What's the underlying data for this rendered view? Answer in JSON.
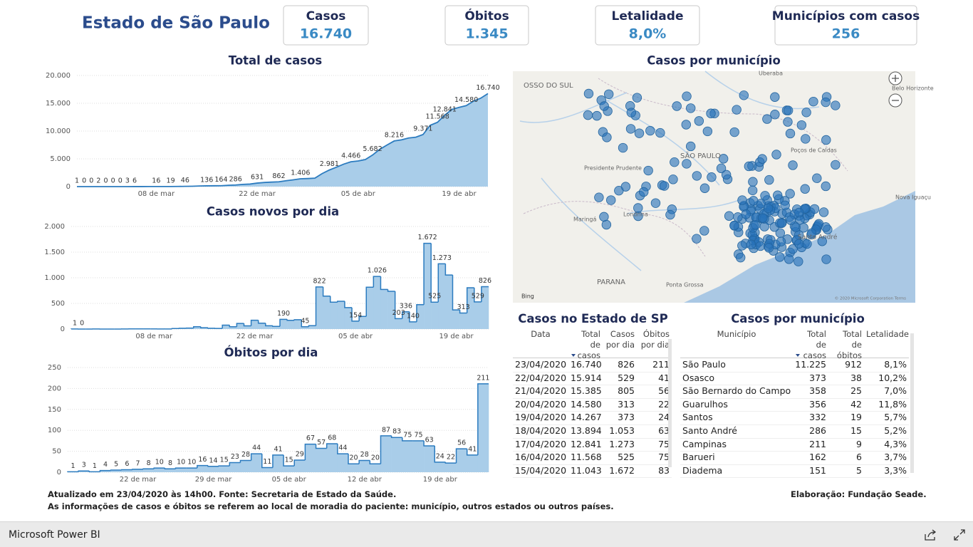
{
  "header": {
    "title": "Estado de São Paulo"
  },
  "kpis": [
    {
      "label": "Casos",
      "value": "16.740"
    },
    {
      "label": "Óbitos",
      "value": "1.345"
    },
    {
      "label": "Letalidade",
      "value": "8,0%"
    },
    {
      "label": "Municípios com casos",
      "value": "256"
    }
  ],
  "chart_data": [
    {
      "type": "area",
      "title": "Total de casos",
      "color": "#2b7bbf",
      "fill": "#a9cde9",
      "grid": true,
      "categories": [
        null,
        null,
        null,
        null,
        null,
        null,
        null,
        null,
        null,
        null,
        null,
        "08 de mar",
        null,
        null,
        null,
        null,
        null,
        null,
        null,
        null,
        null,
        null,
        null,
        null,
        null,
        "22 de mar",
        null,
        null,
        null,
        null,
        null,
        null,
        null,
        null,
        null,
        null,
        null,
        null,
        null,
        "05 de abr",
        null,
        null,
        null,
        null,
        null,
        null,
        null,
        null,
        null,
        null,
        null,
        null,
        null,
        "19 de abr",
        null,
        null,
        null,
        null
      ],
      "values": [
        1,
        0,
        0,
        2,
        0,
        0,
        0,
        3,
        6,
        10,
        13,
        16,
        17,
        19,
        30,
        46,
        65,
        110,
        136,
        152,
        164,
        240,
        286,
        396,
        459,
        631,
        745,
        810,
        862,
        1052,
        1223,
        1406,
        1451,
        1517,
        2339,
        2981,
        3506,
        4048,
        4466,
        4620,
        4866,
        5682,
        6708,
        7480,
        8216,
        8419,
        8755,
        8895,
        9371,
        11043,
        11568,
        12841,
        13894,
        14267,
        14580,
        15385,
        15914,
        16740
      ],
      "value_labels": [
        "1",
        "0",
        "0",
        "2",
        "0",
        "0",
        "0",
        "3",
        "6",
        null,
        null,
        "16",
        null,
        "19",
        null,
        "46",
        null,
        null,
        "136",
        null,
        "164",
        null,
        "286",
        null,
        null,
        "631",
        null,
        null,
        "862",
        null,
        null,
        "1.406",
        null,
        null,
        null,
        "2.981",
        null,
        null,
        "4.466",
        null,
        null,
        "5.682",
        null,
        null,
        "8.216",
        null,
        null,
        null,
        "9.371",
        null,
        "11.568",
        "12.841",
        null,
        null,
        "14.580",
        null,
        null,
        "16.740"
      ],
      "ylim": [
        0,
        20000
      ],
      "yticks": [
        0,
        {
          "value": 5000,
          "label": "5.000"
        },
        {
          "value": 10000,
          "label": "10.000"
        },
        {
          "value": 15000,
          "label": "15.000"
        },
        {
          "value": 20000,
          "label": "20.000"
        }
      ]
    },
    {
      "type": "step",
      "title": "Casos novos por dia",
      "color": "#2b7bbf",
      "fill": "#a9cde9",
      "grid": true,
      "categories": [
        null,
        null,
        null,
        null,
        null,
        null,
        null,
        null,
        null,
        null,
        null,
        "08 de mar",
        null,
        null,
        null,
        null,
        null,
        null,
        null,
        null,
        null,
        null,
        null,
        null,
        null,
        "22 de mar",
        null,
        null,
        null,
        null,
        null,
        null,
        null,
        null,
        null,
        null,
        null,
        null,
        null,
        "05 de abr",
        null,
        null,
        null,
        null,
        null,
        null,
        null,
        null,
        null,
        null,
        null,
        null,
        null,
        "19 de abr",
        null,
        null,
        null,
        null
      ],
      "values": [
        1,
        0,
        0,
        1,
        0,
        0,
        0,
        1,
        3,
        4,
        3,
        3,
        1,
        2,
        11,
        16,
        19,
        45,
        26,
        16,
        12,
        76,
        46,
        110,
        63,
        172,
        114,
        65,
        52,
        190,
        171,
        183,
        45,
        66,
        822,
        642,
        525,
        542,
        418,
        154,
        246,
        816,
        1026,
        772,
        736,
        203,
        336,
        140,
        476,
        1672,
        525,
        1273,
        1053,
        373,
        313,
        805,
        529,
        826
      ],
      "value_labels": [
        "1",
        "0",
        null,
        null,
        null,
        null,
        null,
        null,
        null,
        null,
        null,
        null,
        null,
        null,
        null,
        null,
        null,
        null,
        null,
        null,
        null,
        null,
        null,
        null,
        null,
        null,
        null,
        null,
        null,
        "190",
        null,
        null,
        "45",
        null,
        "822",
        null,
        null,
        null,
        null,
        "154",
        null,
        null,
        "1.026",
        null,
        null,
        "203",
        "336",
        "140",
        null,
        "1.672",
        "525",
        "1.273",
        null,
        null,
        "313",
        null,
        "529",
        "826"
      ],
      "ylim": [
        0,
        2000
      ],
      "yticks": [
        0,
        500,
        {
          "value": 1000,
          "label": "1.000"
        },
        {
          "value": 1500,
          "label": "1.500"
        },
        {
          "value": 2000,
          "label": "2.000"
        }
      ]
    },
    {
      "type": "step",
      "title": "Óbitos por dia",
      "color": "#2b7bbf",
      "fill": "#a9cde9",
      "grid": true,
      "categories": [
        null,
        null,
        null,
        null,
        null,
        null,
        "22 de mar",
        null,
        null,
        null,
        null,
        null,
        null,
        "29 de mar",
        null,
        null,
        null,
        null,
        null,
        null,
        "05 de abr",
        null,
        null,
        null,
        null,
        null,
        null,
        "12 de abr",
        null,
        null,
        null,
        null,
        null,
        null,
        "19 de abr",
        null,
        null,
        null,
        null
      ],
      "values": [
        1,
        3,
        1,
        4,
        5,
        6,
        7,
        8,
        10,
        8,
        10,
        10,
        16,
        14,
        15,
        23,
        28,
        44,
        11,
        41,
        15,
        29,
        67,
        57,
        68,
        44,
        20,
        28,
        20,
        87,
        83,
        75,
        75,
        63,
        24,
        22,
        56,
        41,
        211
      ],
      "ylim": [
        0,
        250
      ],
      "yticks": [
        0,
        50,
        100,
        150,
        200,
        250
      ]
    }
  ],
  "map": {
    "title": "Casos por município",
    "logo": "Bing",
    "attribution": "© 2020 Microsoft Corporation Terms",
    "labels": [
      "OSSO DO SUL",
      "Uberaba",
      "Presidente Prudente",
      "Maringá",
      "Londrina",
      "PARANA",
      "Ponta Grossa",
      "SÃO PAULO",
      "Poços de Caldas",
      "Belo Horizonte",
      "Santo André",
      "Nova Iguaçu"
    ]
  },
  "tables": [
    {
      "title": "Casos no Estado de SP",
      "columns": [
        "Data",
        "Total de casos",
        "Casos por dia",
        "Óbitos por dia"
      ],
      "rows": [
        [
          "23/04/2020",
          "16.740",
          "826",
          "211"
        ],
        [
          "22/04/2020",
          "15.914",
          "529",
          "41"
        ],
        [
          "21/04/2020",
          "15.385",
          "805",
          "56"
        ],
        [
          "20/04/2020",
          "14.580",
          "313",
          "22"
        ],
        [
          "19/04/2020",
          "14.267",
          "373",
          "24"
        ],
        [
          "18/04/2020",
          "13.894",
          "1.053",
          "63"
        ],
        [
          "17/04/2020",
          "12.841",
          "1.273",
          "75"
        ],
        [
          "16/04/2020",
          "11.568",
          "525",
          "75"
        ],
        [
          "15/04/2020",
          "11.043",
          "1.672",
          "83"
        ]
      ]
    },
    {
      "title": "Casos por município",
      "columns": [
        "Município",
        "Total de casos",
        "Total de óbitos",
        "Letalidade"
      ],
      "rows": [
        [
          "São Paulo",
          "11.225",
          "912",
          "8,1%"
        ],
        [
          "Osasco",
          "373",
          "38",
          "10,2%"
        ],
        [
          "São Bernardo do Campo",
          "358",
          "25",
          "7,0%"
        ],
        [
          "Guarulhos",
          "356",
          "42",
          "11,8%"
        ],
        [
          "Santos",
          "332",
          "19",
          "5,7%"
        ],
        [
          "Santo André",
          "286",
          "15",
          "5,2%"
        ],
        [
          "Campinas",
          "211",
          "9",
          "4,3%"
        ],
        [
          "Barueri",
          "162",
          "6",
          "3,7%"
        ],
        [
          "Diadema",
          "151",
          "5",
          "3,3%"
        ]
      ]
    }
  ],
  "footer": {
    "updated": "Atualizado em 23/04/2020 às 14h00. Fonte: Secretaria de Estado da Saúde.",
    "note": "As informações de casos e óbitos se referem ao local de moradia do paciente: município, outros estados ou outros países.",
    "credit": "Elaboração: Fundação Seade."
  },
  "app": {
    "name": "Microsoft Power BI"
  }
}
